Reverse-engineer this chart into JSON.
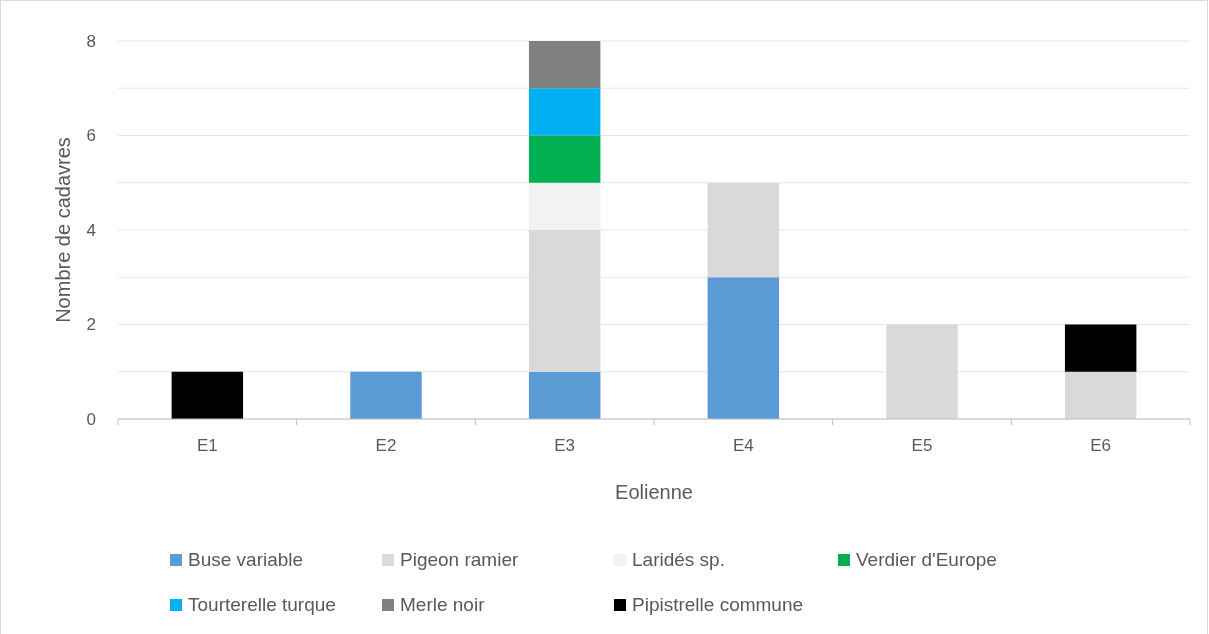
{
  "chart_data": {
    "type": "bar",
    "stacked": true,
    "xlabel": "Eolienne",
    "ylabel": "Nombre de cadavres",
    "categories": [
      "E1",
      "E2",
      "E3",
      "E4",
      "E5",
      "E6"
    ],
    "series": [
      {
        "name": "Buse variable",
        "color": "#5b9bd5",
        "values": [
          0,
          1,
          1,
          3,
          0,
          0
        ]
      },
      {
        "name": "Pigeon ramier",
        "color": "#d9d9d9",
        "values": [
          0,
          0,
          3,
          2,
          2,
          1
        ]
      },
      {
        "name": "Laridés sp.",
        "color": "#f2f2f2",
        "values": [
          0,
          0,
          1,
          0,
          0,
          0
        ]
      },
      {
        "name": "Verdier d'Europe",
        "color": "#00b050",
        "values": [
          0,
          0,
          1,
          0,
          0,
          0
        ]
      },
      {
        "name": "Tourterelle turque",
        "color": "#00b0f0",
        "values": [
          0,
          0,
          1,
          0,
          0,
          0
        ]
      },
      {
        "name": "Merle noir",
        "color": "#808080",
        "values": [
          0,
          0,
          1,
          0,
          0,
          0
        ]
      },
      {
        "name": "Pipistrelle commune",
        "color": "#000000",
        "values": [
          1,
          0,
          0,
          0,
          0,
          1
        ]
      }
    ],
    "ylim": [
      0,
      8
    ],
    "yticks": [
      0,
      {
        "value": 1,
        "label": null
      },
      2,
      {
        "value": 3,
        "label": null
      },
      4,
      {
        "value": 5,
        "label": null
      },
      6,
      {
        "value": 7,
        "label": null
      },
      8
    ],
    "grid": "y",
    "legend": "bottom"
  }
}
